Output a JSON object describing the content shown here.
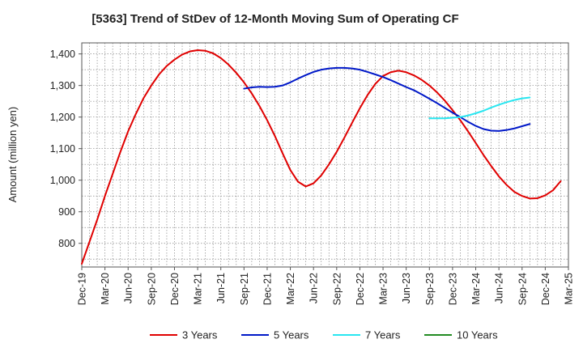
{
  "chart_data": {
    "type": "line",
    "title": "[5363]  Trend of StDev of 12-Month Moving Sum of Operating CF",
    "xlabel": "",
    "ylabel": "Amount (million yen)",
    "ylim": [
      725,
      1435
    ],
    "yticks": [
      800,
      900,
      1000,
      1100,
      1200,
      1300,
      1400
    ],
    "ytick_labels": [
      "800",
      "900",
      "1,000",
      "1,100",
      "1,200",
      "1,300",
      "1,400"
    ],
    "x_start": "Dec-19",
    "x_end": "Mar-25",
    "xtick_labels": [
      "Dec-19",
      "Mar-20",
      "Jun-20",
      "Sep-20",
      "Dec-20",
      "Mar-21",
      "Jun-21",
      "Sep-21",
      "Dec-21",
      "Mar-22",
      "Jun-22",
      "Sep-22",
      "Dec-22",
      "Mar-23",
      "Jun-23",
      "Sep-23",
      "Dec-23",
      "Mar-24",
      "Jun-24",
      "Sep-24",
      "Dec-24",
      "Mar-25"
    ],
    "grid": true,
    "legend_position": "bottom",
    "series": [
      {
        "name": "3 Years",
        "color": "#e00000",
        "start_month": 0,
        "values": [
          735,
          805,
          875,
          950,
          1020,
          1090,
          1155,
          1210,
          1260,
          1300,
          1335,
          1362,
          1382,
          1398,
          1408,
          1412,
          1410,
          1402,
          1387,
          1366,
          1340,
          1310,
          1275,
          1235,
          1190,
          1140,
          1085,
          1032,
          995,
          980,
          990,
          1015,
          1050,
          1090,
          1135,
          1182,
          1228,
          1270,
          1305,
          1330,
          1342,
          1347,
          1342,
          1332,
          1318,
          1300,
          1278,
          1252,
          1222,
          1190,
          1155,
          1118,
          1080,
          1045,
          1012,
          985,
          963,
          950,
          942,
          943,
          952,
          968,
          997
        ]
      },
      {
        "name": "5 Years",
        "color": "#0018c8",
        "start_month": 21,
        "values": [
          1290,
          1294,
          1296,
          1295,
          1296,
          1300,
          1310,
          1322,
          1333,
          1343,
          1350,
          1354,
          1356,
          1356,
          1354,
          1350,
          1343,
          1335,
          1327,
          1317,
          1306,
          1295,
          1285,
          1272,
          1258,
          1244,
          1229,
          1214,
          1200,
          1185,
          1172,
          1162,
          1157,
          1156,
          1159,
          1164,
          1171,
          1178
        ]
      },
      {
        "name": "7 Years",
        "color": "#28e6f0",
        "start_month": 45,
        "values": [
          1196,
          1196,
          1196,
          1198,
          1200,
          1205,
          1212,
          1220,
          1230,
          1239,
          1247,
          1254,
          1259,
          1262
        ]
      },
      {
        "name": "10 Years",
        "color": "#228b22",
        "start_month": 0,
        "values": []
      }
    ]
  }
}
